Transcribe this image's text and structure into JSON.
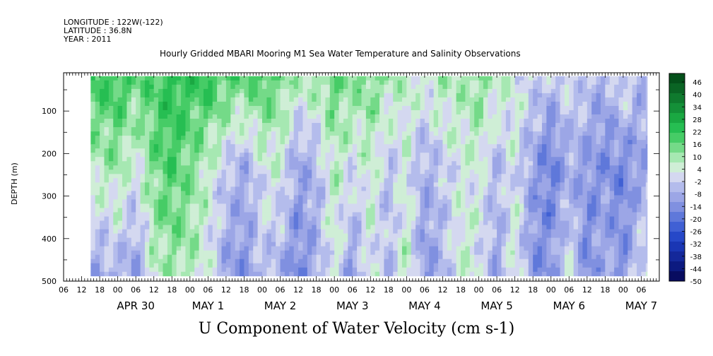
{
  "meta": {
    "longitude": "LONGITUDE : 122W(-122)",
    "latitude": "LATITUDE : 36.8N",
    "year": "YEAR : 2011"
  },
  "chart_data": {
    "type": "heatmap",
    "title": "Hourly Gridded MBARI Mooring M1 Sea Water Temperature and Salinity Observations",
    "xlabel": "U Component of Water Velocity (cm s-1)",
    "ylabel": "DEPTH (m)",
    "ylim": [
      500,
      10
    ],
    "y_ticks": [
      100,
      200,
      300,
      400,
      500
    ],
    "y_tick_labels": [
      "100",
      "200",
      "300",
      "400",
      "500"
    ],
    "x_hour_ticks": [
      "06",
      "12",
      "18",
      "00",
      "06",
      "12",
      "18",
      "00",
      "06",
      "12",
      "18",
      "00",
      "06",
      "12",
      "18",
      "00",
      "06",
      "12",
      "18",
      "00",
      "06",
      "12",
      "18",
      "00",
      "06",
      "12",
      "18",
      "00",
      "06",
      "12",
      "18",
      "00",
      "06"
    ],
    "x_day_labels": [
      "APR 30",
      "MAY 1",
      "MAY 2",
      "MAY 3",
      "MAY 4",
      "MAY 5",
      "MAY 6",
      "MAY 7"
    ],
    "x_day_label_hours": [
      24,
      48,
      72,
      96,
      120,
      144,
      168,
      192
    ],
    "x_range_hours": [
      0,
      198
    ],
    "data_extent_hours": [
      9,
      194
    ],
    "data_extent_depth": [
      18,
      488
    ],
    "colorbar": {
      "labels": [
        "46",
        "40",
        "34",
        "28",
        "22",
        "16",
        "10",
        "4",
        "-2",
        "-8",
        "-14",
        "-20",
        "-26",
        "-32",
        "-38",
        "-44",
        "-50"
      ],
      "colors": [
        "#04501a",
        "#0a6424",
        "#0f7a2e",
        "#149038",
        "#1aa842",
        "#26be52",
        "#46cc66",
        "#74da88",
        "#a6e8b2",
        "#cfeed6",
        "#d4d8f0",
        "#b4bcec",
        "#9ca6e6",
        "#8090e0",
        "#5f78da",
        "#4060d4",
        "#2648c8",
        "#1a36b4",
        "#14289a",
        "#0c1a80",
        "#080c60"
      ]
    },
    "profiles": [
      {
        "hour": 12,
        "surface": 20,
        "mid": 8,
        "deep": -10
      },
      {
        "hour": 18,
        "surface": 22,
        "mid": 10,
        "deep": -6
      },
      {
        "hour": 24,
        "surface": 16,
        "mid": 2,
        "deep": -12
      },
      {
        "hour": 30,
        "surface": 18,
        "mid": 14,
        "deep": 6
      },
      {
        "hour": 36,
        "surface": 24,
        "mid": 18,
        "deep": 10
      },
      {
        "hour": 42,
        "surface": 20,
        "mid": 14,
        "deep": 8
      },
      {
        "hour": 48,
        "surface": 22,
        "mid": 6,
        "deep": 2
      },
      {
        "hour": 54,
        "surface": 18,
        "mid": -2,
        "deep": -10
      },
      {
        "hour": 60,
        "surface": 16,
        "mid": -8,
        "deep": -14
      },
      {
        "hour": 66,
        "surface": 20,
        "mid": 2,
        "deep": -4
      },
      {
        "hour": 72,
        "surface": 14,
        "mid": 4,
        "deep": -8
      },
      {
        "hour": 78,
        "surface": 8,
        "mid": -10,
        "deep": -16
      },
      {
        "hour": 84,
        "surface": 10,
        "mid": -6,
        "deep": -8
      },
      {
        "hour": 90,
        "surface": 16,
        "mid": 8,
        "deep": 4
      },
      {
        "hour": 96,
        "surface": 12,
        "mid": 0,
        "deep": -12
      },
      {
        "hour": 102,
        "surface": 14,
        "mid": 6,
        "deep": 4
      },
      {
        "hour": 108,
        "surface": 10,
        "mid": -4,
        "deep": -6
      },
      {
        "hour": 114,
        "surface": 6,
        "mid": 4,
        "deep": 8
      },
      {
        "hour": 120,
        "surface": 4,
        "mid": -8,
        "deep": -14
      },
      {
        "hour": 126,
        "surface": 10,
        "mid": -2,
        "deep": -6
      },
      {
        "hour": 132,
        "surface": 8,
        "mid": 2,
        "deep": 6
      },
      {
        "hour": 138,
        "surface": 14,
        "mid": 4,
        "deep": 2
      },
      {
        "hour": 144,
        "surface": 6,
        "mid": -6,
        "deep": -10
      },
      {
        "hour": 150,
        "surface": 4,
        "mid": 2,
        "deep": 6
      },
      {
        "hour": 156,
        "surface": 0,
        "mid": -10,
        "deep": -14
      },
      {
        "hour": 162,
        "surface": -4,
        "mid": -18,
        "deep": -12
      },
      {
        "hour": 168,
        "surface": 2,
        "mid": -8,
        "deep": 4
      },
      {
        "hour": 174,
        "surface": -2,
        "mid": -12,
        "deep": -16
      },
      {
        "hour": 180,
        "surface": -8,
        "mid": -14,
        "deep": -6
      },
      {
        "hour": 186,
        "surface": 4,
        "mid": -16,
        "deep": -14
      },
      {
        "hour": 192,
        "surface": -6,
        "mid": -10,
        "deep": 2
      }
    ]
  }
}
